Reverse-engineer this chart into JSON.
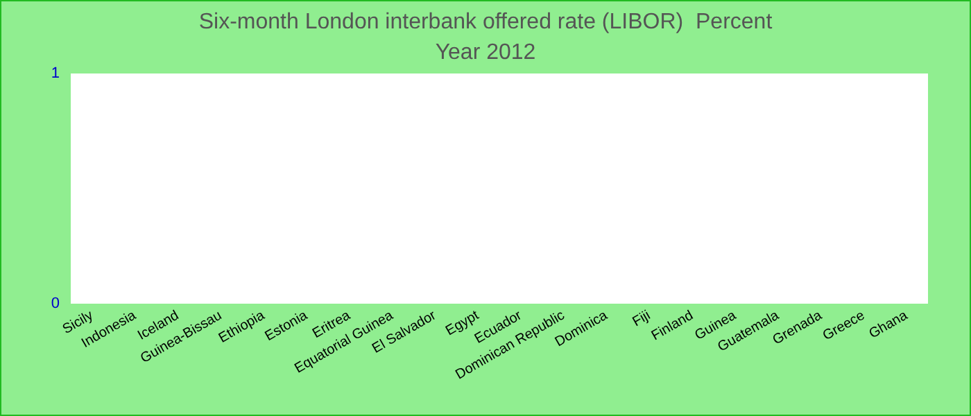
{
  "chart_data": {
    "type": "bar",
    "title": "Six-month London interbank offered rate (LIBOR)  Percent",
    "subtitle": "Year 2012",
    "categories": [
      "Sicily",
      "Indonesia",
      "Iceland",
      "Guinea-Bissau",
      "Ethiopia",
      "Estonia",
      "Eritrea",
      "Equatorial Guinea",
      "El Salvador",
      "Egypt",
      "Ecuador",
      "Dominican Republic",
      "Dominica",
      "Fiji",
      "Finland",
      "Guinea",
      "Guatemala",
      "Grenada",
      "Greece",
      "Ghana"
    ],
    "values": [
      0,
      0,
      0,
      0,
      0,
      0,
      0,
      0,
      0,
      0,
      0,
      0,
      0,
      0,
      0,
      0,
      0,
      0,
      0,
      0
    ],
    "ylim": [
      0,
      1
    ],
    "yticks": [
      0,
      1
    ],
    "grid": false
  }
}
